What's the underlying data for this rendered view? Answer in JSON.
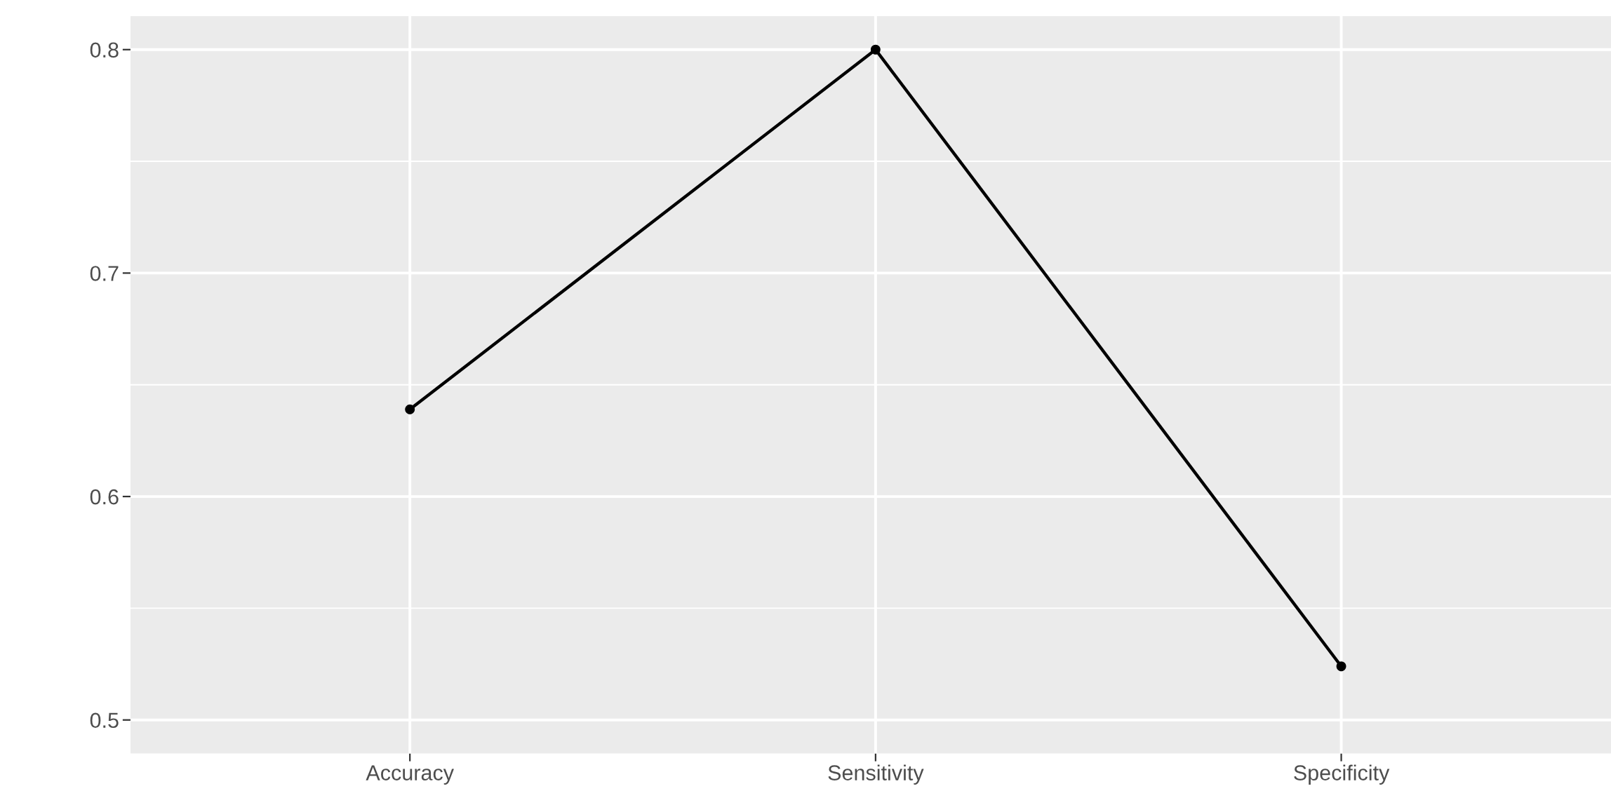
{
  "chart_data": {
    "type": "line",
    "categories": [
      "Accuracy",
      "Sensitivity",
      "Specificity"
    ],
    "series": [
      {
        "color": "#000000",
        "values": [
          0.639,
          0.8,
          0.524
        ]
      }
    ],
    "ylim": [
      0.485,
      0.815
    ],
    "yticks": [
      0.5,
      0.6,
      0.7,
      0.8
    ],
    "grid": true,
    "marker": "circle",
    "line_style": "solid"
  }
}
